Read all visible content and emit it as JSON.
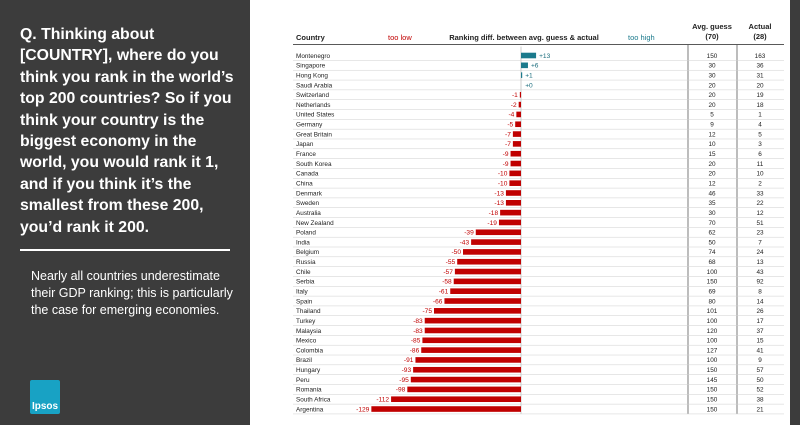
{
  "panel": {
    "question": "Q. Thinking about [COUNTRY], where do you think you rank in the world’s top 200 countries? So if you think your country is the biggest economy in the world, you would rank it 1, and if you think it’s the smallest from these 200, you’d rank it 200.",
    "summary": "Nearly all countries underestimate their GDP ranking; this is particularly the case for emerging economies.",
    "logo_text": "Ipsos"
  },
  "colors": {
    "panel_bg": "#3c3c3c",
    "negative": "#c00000",
    "positive": "#1b7a8c",
    "logo": "#18a2c4"
  },
  "chart_data": {
    "type": "bar",
    "orientation": "horizontal",
    "headers": {
      "country": "Country",
      "too_low": "too low",
      "title": "Ranking diff. between avg. guess & actual",
      "too_high": "too high",
      "avg_guess": "Avg. guess",
      "avg_guess_n": "(70)",
      "actual": "Actual",
      "actual_n": "(28)"
    },
    "countries": [
      "Montenegro",
      "Singapore",
      "Hong Kong",
      "Saudi Arabia",
      "Switzerland",
      "Netherlands",
      "United States",
      "Germany",
      "Great Britain",
      "Japan",
      "France",
      "South Korea",
      "Canada",
      "China",
      "Denmark",
      "Sweden",
      "Australia",
      "New Zealand",
      "Poland",
      "India",
      "Belgium",
      "Russia",
      "Chile",
      "Serbia",
      "Italy",
      "Spain",
      "Thailand",
      "Turkey",
      "Malaysia",
      "Mexico",
      "Colombia",
      "Brazil",
      "Hungary",
      "Peru",
      "Romania",
      "South Africa",
      "Argentina"
    ],
    "values": [
      13,
      6,
      1,
      0,
      -1,
      -2,
      -4,
      -5,
      -7,
      -7,
      -9,
      -9,
      -10,
      -10,
      -13,
      -13,
      -18,
      -19,
      -39,
      -43,
      -50,
      -55,
      -57,
      -58,
      -61,
      -66,
      -75,
      -83,
      -83,
      -85,
      -86,
      -91,
      -93,
      -95,
      -98,
      -112,
      -129
    ],
    "value_labels": [
      "+13",
      "+6",
      "+1",
      "+0",
      "-1",
      "-2",
      "-4",
      "-5",
      "-7",
      "-7",
      "-9",
      "-9",
      "-10",
      "-10",
      "-13",
      "-13",
      "-18",
      "-19",
      "-39",
      "-43",
      "-50",
      "-55",
      "-57",
      "-58",
      "-61",
      "-66",
      "-75",
      "-83",
      "-83",
      "-85",
      "-86",
      "-91",
      "-93",
      "-95",
      "-98",
      "-112",
      "-129"
    ],
    "avg_guess": [
      150,
      30,
      30,
      20,
      20,
      20,
      5,
      9,
      12,
      10,
      15,
      20,
      20,
      12,
      46,
      35,
      30,
      70,
      62,
      50,
      74,
      68,
      100,
      150,
      69,
      80,
      101,
      100,
      120,
      100,
      127,
      100,
      150,
      145,
      150,
      150,
      150
    ],
    "actual": [
      163,
      36,
      31,
      20,
      19,
      18,
      1,
      4,
      5,
      3,
      6,
      11,
      10,
      2,
      33,
      22,
      12,
      51,
      23,
      7,
      24,
      13,
      43,
      92,
      8,
      14,
      26,
      17,
      37,
      15,
      41,
      9,
      57,
      50,
      52,
      38,
      21
    ]
  }
}
